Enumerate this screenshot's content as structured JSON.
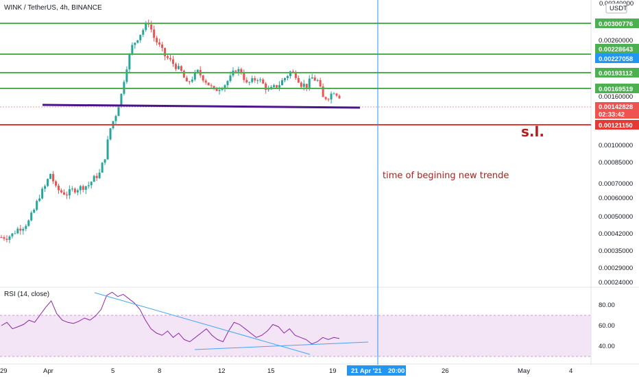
{
  "header": {
    "symbol_title": "WINK / TetherUS, 4h, BINANCE",
    "currency_button": "USDT",
    "top_axis_label": "0.00340000"
  },
  "annotations": {
    "stop_loss": "s.l.",
    "trend_note": "time of begining new trende",
    "rsi_label": "RSI (14, close)",
    "current_price": "0.00142828",
    "countdown": "02:33:42",
    "vertical_marker_date": "21 Apr '21",
    "vertical_marker_time": "20:00"
  },
  "colors": {
    "up": "#26a69a",
    "down": "#ef5350",
    "support_line": "#4caf50",
    "stop_line": "#e53935",
    "trend_line": "#4a148c",
    "rsi_line": "#8e24aa",
    "rsi_band": "#f3e5f5",
    "rsi_trend": "#42a5f5",
    "marker": "#2196f3"
  },
  "chart_data": {
    "type": "candlestick",
    "title": "WINK / TetherUS, 4h, BINANCE",
    "y_axis_labels": [
      "0.00340000",
      "0.00300776",
      "0.00260000",
      "0.00228643",
      "0.00227058",
      "0.00193112",
      "0.00169519",
      "0.00160000",
      "0.00142828",
      "0.00121150",
      "0.00100000",
      "0.00085000",
      "0.00070000",
      "0.00060000",
      "0.00050000",
      "0.00042000",
      "0.00035000",
      "0.00029000",
      "0.00024000"
    ],
    "y_scale": "log",
    "ylim": [
      0.00024,
      0.0034
    ],
    "x_ticks": [
      "29",
      "Apr",
      "5",
      "8",
      "12",
      "15",
      "19",
      "26",
      "May",
      "4"
    ],
    "horizontal_levels": [
      {
        "value": "0.00300776",
        "color": "#4caf50"
      },
      {
        "value": "0.00228643",
        "color": "#4caf50"
      },
      {
        "value": "0.00227058",
        "color": "#2196f3"
      },
      {
        "value": "0.00193112",
        "color": "#4caf50"
      },
      {
        "value": "0.00169519",
        "color": "#4caf50"
      },
      {
        "value": "0.00121150",
        "color": "#e53935"
      }
    ],
    "current_price": "0.00142828",
    "price_path": [
      0.00037,
      0.00037,
      0.00038,
      0.0004,
      0.00041,
      0.00043,
      0.00048,
      0.00055,
      0.0006,
      0.00068,
      0.00059,
      0.00057,
      0.00056,
      0.00058,
      0.00059,
      0.0006,
      0.00061,
      0.00065,
      0.00068,
      0.0008,
      0.00105,
      0.0012,
      0.00145,
      0.0019,
      0.0023,
      0.0025,
      0.0027,
      0.0029,
      0.0025,
      0.0023,
      0.0021,
      0.002,
      0.0019,
      0.0018,
      0.0016,
      0.0017,
      0.0018,
      0.0017,
      0.0016,
      0.0015,
      0.00155,
      0.0016,
      0.0017,
      0.00185,
      0.0018,
      0.0016,
      0.00165,
      0.0017,
      0.0016,
      0.0015,
      0.00155,
      0.0016,
      0.0017,
      0.0018,
      0.00175,
      0.0016,
      0.00158,
      0.0017,
      0.00165,
      0.0014,
      0.00142,
      0.0015,
      0.00143
    ],
    "rsi": {
      "label": "RSI (14, close)",
      "axis_labels": [
        "80.00",
        "60.00",
        "40.00"
      ],
      "band": [
        30,
        70
      ],
      "values": [
        55,
        58,
        52,
        54,
        56,
        60,
        58,
        65,
        72,
        78,
        66,
        60,
        58,
        57,
        59,
        62,
        60,
        64,
        70,
        83,
        86,
        82,
        84,
        80,
        76,
        70,
        60,
        52,
        48,
        46,
        50,
        44,
        48,
        42,
        40,
        44,
        48,
        52,
        46,
        42,
        40,
        50,
        58,
        56,
        52,
        48,
        44,
        46,
        50,
        56,
        54,
        48,
        52,
        46,
        44,
        42,
        38,
        40,
        44,
        42,
        44,
        43
      ]
    }
  }
}
